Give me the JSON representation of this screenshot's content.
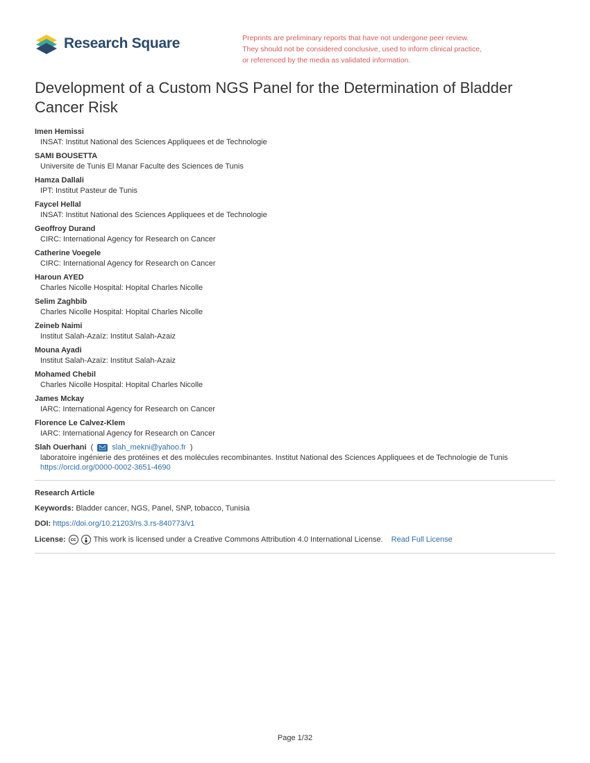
{
  "logo_text": "Research Square",
  "disclaimer": [
    "Preprints are preliminary reports that have not undergone peer review.",
    "They should not be considered conclusive, used to inform clinical practice,",
    "or referenced by the media as validated information."
  ],
  "title": "Development of a Custom NGS Panel for the Determination of Bladder Cancer Risk",
  "authors": [
    {
      "name": "Imen Hemissi",
      "affil": "INSAT: Institut National des Sciences Appliquees et de Technologie"
    },
    {
      "name": "SAMI BOUSETTA",
      "affil": "Universite de Tunis El Manar Faculte des Sciences de Tunis"
    },
    {
      "name": "Hamza Dallali",
      "affil": "IPT: Institut Pasteur de Tunis"
    },
    {
      "name": "Faycel Hellal",
      "affil": "INSAT: Institut National des Sciences Appliquees et de Technologie"
    },
    {
      "name": "Geoffroy Durand",
      "affil": "CIRC: International Agency for Research on Cancer"
    },
    {
      "name": "Catherine Voegele",
      "affil": "CIRC: International Agency for Research on Cancer"
    },
    {
      "name": "Haroun AYED",
      "affil": "Charles Nicolle Hospital: Hopital Charles Nicolle"
    },
    {
      "name": "Selim Zaghbib",
      "affil": "Charles Nicolle Hospital: Hopital Charles Nicolle"
    },
    {
      "name": "Zeineb Naimi",
      "affil": "Institut Salah-Azaïz: Institut Salah-Azaiz"
    },
    {
      "name": "Mouna Ayadi",
      "affil": "Institut Salah-Azaïz: Institut Salah-Azaiz"
    },
    {
      "name": "Mohamed Chebil",
      "affil": "Charles Nicolle Hospital: Hopital Charles Nicolle"
    },
    {
      "name": "James Mckay",
      "affil": "IARC: International Agency for Research on Cancer"
    },
    {
      "name": "Florence Le Calvez-Klem",
      "affil": "IARC: International Agency for Research on Cancer"
    }
  ],
  "corresponding": {
    "name": "Slah Ouerhani",
    "email": "slah_mekni@yahoo.fr",
    "affil": "laboratoire ingénierie des protéines et des molécules recombinantes. Institut National des Sciences Appliquees et de Technologie de Tunis",
    "orcid": "https://orcid.org/0000-0002-3651-4690"
  },
  "article_type": "Research Article",
  "keywords_label": "Keywords:",
  "keywords": "Bladder cancer, NGS, Panel, SNP, tobacco, Tunisia",
  "doi_label": "DOI:",
  "doi": "https://doi.org/10.21203/rs.3.rs-840773/v1",
  "license_label": "License:",
  "license_text": "This work is licensed under a Creative Commons Attribution 4.0 International License.",
  "license_link": "Read Full License",
  "page_info": "Page 1/32",
  "colors": {
    "text": "#333333",
    "link": "#2a6ca8",
    "disclaimer": "#d75a5a",
    "divider": "#d0d0d0",
    "logo_teal": "#3fa796",
    "logo_navy": "#2b4a6b",
    "logo_yellow": "#f4c430"
  }
}
